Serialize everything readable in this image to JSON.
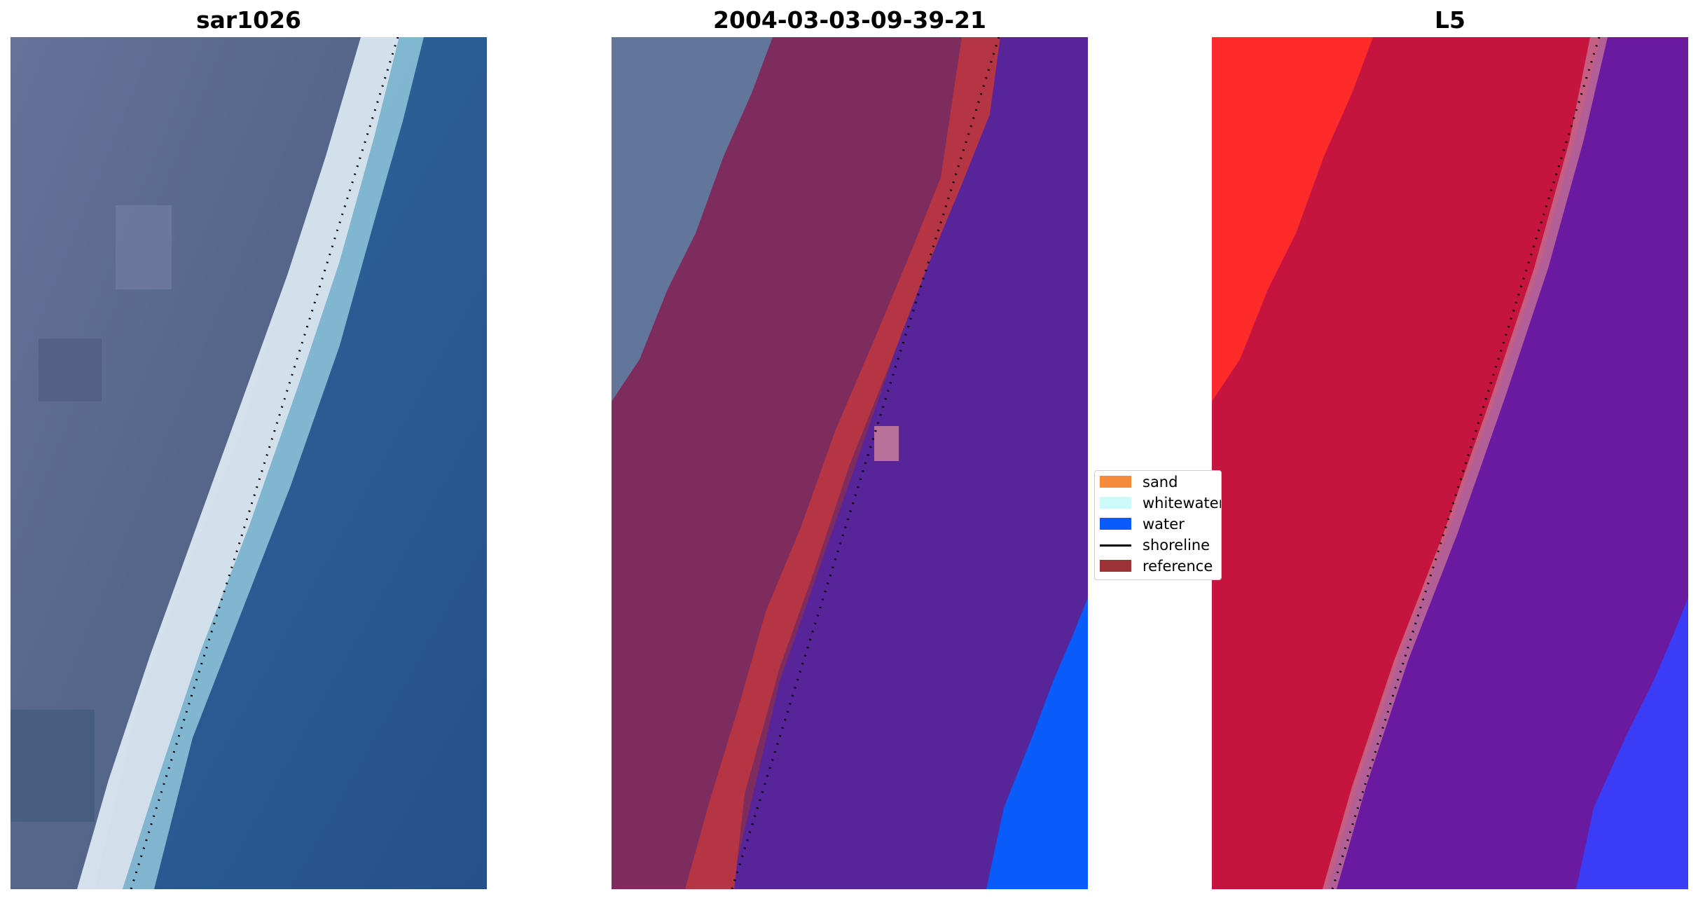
{
  "panels": [
    {
      "title": "sar1026"
    },
    {
      "title": "2004-03-03-09-39-21"
    },
    {
      "title": "L5"
    }
  ],
  "legend": {
    "items": [
      {
        "label": "sand",
        "color": "#f58a3b",
        "kind": "patch"
      },
      {
        "label": "whitewater",
        "color": "#ccfaf9",
        "kind": "patch"
      },
      {
        "label": "water",
        "color": "#0a5cfa",
        "kind": "patch"
      },
      {
        "label": "shoreline",
        "color": "#000000",
        "kind": "line"
      },
      {
        "label": "reference",
        "color": "#9b3236",
        "kind": "patch"
      }
    ]
  },
  "colors": {
    "land_rgb": "#5d6b8f",
    "whitewater_rgb": "#dfe9f2",
    "sea_rgb": "#2b5f95",
    "land_overlay": "#7e2b5e",
    "reference_overlay": "#b53545",
    "sea_overlay": "#58249a",
    "water_overlay": "#0a5cfa",
    "land_prob": "#c5153e",
    "land_prob_high": "#ff2a2a",
    "sea_prob": "#6a1aa0"
  }
}
